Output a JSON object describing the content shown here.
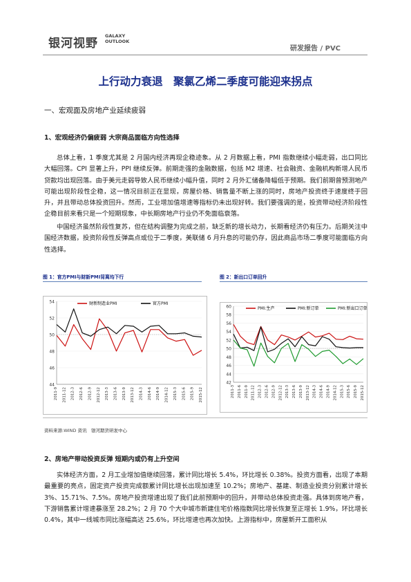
{
  "header": {
    "logo_cn": "银河视野",
    "logo_en_line1": "GALAXY",
    "logo_en_line2": "OUTLOOK",
    "report_type": "研发报告 / PVC"
  },
  "title": "上行动力衰退　聚氯乙烯二季度可能迎来拐点",
  "section1": {
    "heading": "一、宏观面及房地产业延续疲弱",
    "sub1": "1、宏观经济仍偏疲弱 大宗商品面临方向性选择",
    "para1": "总体上看，1 季度尤其是 2 月国内经济再现企稳迹象。从 2 月数据上看，PMI 指数继续小幅走弱，出口同比大幅回落。CPI 显著上升，PPI 继续反弹。前期走强的金融数据，包括 M2 增速、社会融资、金融机构新增人民币贷款均出现回落。由于美元走弱导致人民币继续小幅升值，同时 2 月外汇储备降幅低于预期。我们前期曾预测地产可能出现阶段性企稳，这一情况目前正在显现，房屋价格、销售量不断上涨的同时，房地产投资终于速度终于回升，并且带动总体投资回升。然而，工业增加值增速等指标仍未出现好转。我们要强调的是，投资带动经济阶段性企稳目前来看只是一个短期现象，中长期房地产行业仍不免面临衰落。",
    "para2": "中国经济虽然阶段性复苏，但在结构调整为完成之前，缺乏新的增长动力，长期看经济仍有压力。后期关注中国经济数据，投资阶段性反弹高点或位于二季度，美联储 6 月升息的可能仍存，因此商品市场二季度可能面临方向性选择。",
    "sub2": "2、房地产带动投资反弹 短期内或仍有上升空间",
    "para3": "实体经济方面，2 月工业增加值继续回落，累计同比增长 5.4%，环比增长 0.38%。投资方面看，出现了本期最重要的亮点，固定资产投资完成额累计同比增长出现加速至 10.2%；房地产、基建、制造业投资分别累计增长 3%、15.71%、7.5%。房地产投资增速出现了我们此前预期中的回升，并带动总体投资走强。具体到房地产看，下游销售累计增速暴涨至 28.2%；2 月 70 个大中城市新建住宅价格指数同比增长恢复至正增长 1.9%，环比增长 0.4%，其中一线城市同比涨幅高达 25.6%，环比增速也再次加快。上游指标中，房屋新开工面积从"
  },
  "figures": {
    "fig1_caption": "图 1：官方PMI与财新PMI背离均下行",
    "fig2_caption": "图 2：新出口订单回升",
    "source": "资料来源:WIND 资讯　银河期货研发中心"
  },
  "chart_data": [
    {
      "type": "line",
      "title": "",
      "xlabel": "",
      "ylabel": "",
      "ylim": [
        44,
        54
      ],
      "yticks": [
        44,
        46,
        48,
        50,
        52,
        54
      ],
      "x": [
        "2011-9",
        "2011-12",
        "2012-3",
        "2012-6",
        "2012-9",
        "2012-12",
        "2013-3",
        "2013-6",
        "2013-9",
        "2013-12",
        "2014-3",
        "2014-6",
        "2014-9",
        "2014-12",
        "2015-3",
        "2015-6",
        "2015-9",
        "2015-12"
      ],
      "series": [
        {
          "name": "财新制造业PMI",
          "color": "#cc1111",
          "values": [
            49.9,
            48.6,
            51.2,
            49.5,
            48.2,
            51.9,
            50.5,
            48.0,
            50.2,
            50.5,
            47.9,
            50.6,
            50.6,
            49.6,
            49.2,
            49.4,
            47.5,
            48.1
          ]
        },
        {
          "name": "官方PMI",
          "color": "#111111",
          "values": [
            51.2,
            50.3,
            53.1,
            50.2,
            49.8,
            50.6,
            50.9,
            50.1,
            51.1,
            51.0,
            50.3,
            51.0,
            51.1,
            50.1,
            50.1,
            50.2,
            49.8,
            49.7
          ]
        }
      ]
    },
    {
      "type": "line",
      "title": "",
      "xlabel": "",
      "ylabel": "",
      "ylim": [
        42,
        60
      ],
      "yticks": [
        42,
        44,
        46,
        48,
        50,
        52,
        54,
        56,
        58,
        60
      ],
      "x": [
        "2011-3",
        "2011-6",
        "2011-9",
        "2011-12",
        "2012-3",
        "2012-6",
        "2012-9",
        "2012-12",
        "2013-3",
        "2013-6",
        "2013-9",
        "2013-12",
        "2014-3",
        "2014-6",
        "2014-9",
        "2014-12",
        "2015-3",
        "2015-6",
        "2015-9",
        "2015-12"
      ],
      "series": [
        {
          "name": "PMI:生产",
          "color": "#cc1111",
          "values": [
            55.7,
            52.9,
            51.4,
            50.9,
            55.2,
            52.0,
            50.9,
            53.2,
            52.7,
            52.0,
            52.9,
            53.9,
            52.7,
            53.0,
            53.6,
            52.2,
            52.1,
            52.9,
            52.3,
            52.2
          ]
        },
        {
          "name": "PMI:新订单",
          "color": "#111111",
          "values": [
            53.4,
            50.1,
            50.3,
            49.5,
            55.1,
            49.2,
            49.8,
            51.2,
            52.3,
            50.4,
            52.8,
            50.9,
            50.6,
            52.8,
            52.2,
            50.4,
            50.2,
            50.1,
            50.2,
            50.2
          ]
        },
        {
          "name": "PMI:新出口订单",
          "color": "#1e9a2e",
          "values": [
            52.0,
            50.1,
            49.7,
            45.8,
            51.3,
            48.1,
            46.6,
            50.0,
            51.2,
            46.9,
            50.9,
            49.8,
            48.1,
            49.3,
            49.6,
            48.1,
            46.4,
            47.5,
            46.2,
            47.6
          ]
        }
      ]
    }
  ]
}
